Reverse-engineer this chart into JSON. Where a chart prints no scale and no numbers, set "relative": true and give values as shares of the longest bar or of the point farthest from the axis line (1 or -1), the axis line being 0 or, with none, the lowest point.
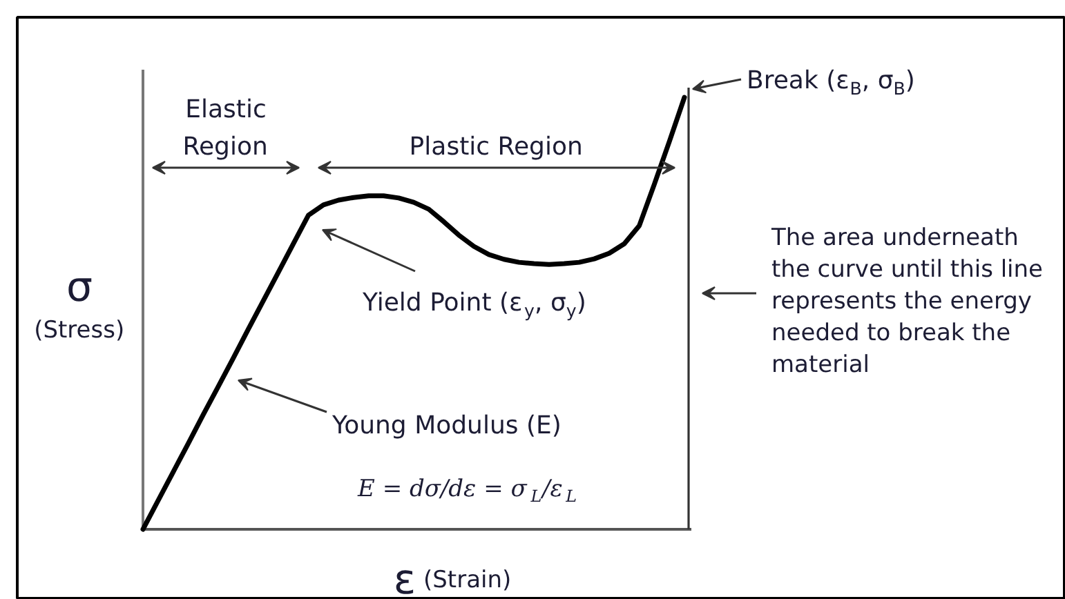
{
  "chart_data": {
    "type": "line",
    "relative": true,
    "xlabel": "ε (Strain)",
    "ylabel": "σ (Stress)",
    "categories": [
      null,
      null,
      null,
      null,
      null,
      null,
      null,
      null,
      null,
      null,
      null,
      null,
      null,
      null,
      null,
      null,
      null,
      null,
      null,
      null,
      null,
      null,
      null,
      null,
      null,
      null,
      null,
      null,
      null,
      null,
      null,
      null,
      null,
      null,
      null,
      null,
      null
    ],
    "series": [
      {
        "color": "#000000",
        "values": [
          0,
          0.066,
          0.132,
          0.198,
          0.265,
          0.33,
          0.396,
          0.463,
          0.529,
          0.595,
          0.661,
          0.727,
          0.751,
          0.762,
          0.768,
          0.772,
          0.772,
          0.767,
          0.757,
          0.741,
          0.712,
          0.681,
          0.655,
          0.636,
          0.625,
          0.618,
          0.615,
          0.613,
          0.615,
          0.618,
          0.626,
          0.639,
          0.661,
          0.703,
          0.799,
          0.898,
          1
        ]
      }
    ],
    "annotations": [
      "Elastic Region",
      "Plastic Region",
      "Break (ε$_{B}$, σ$_{B}$)",
      "Yield Point (ε$_{y}$, σ$_{y}$)",
      "Young Modulus (E)",
      "E = dσ/dε = σ$_{L}$/ε$_{L}$",
      "The area underneath the curve until this line represents the energy needed to break the material"
    ]
  }
}
